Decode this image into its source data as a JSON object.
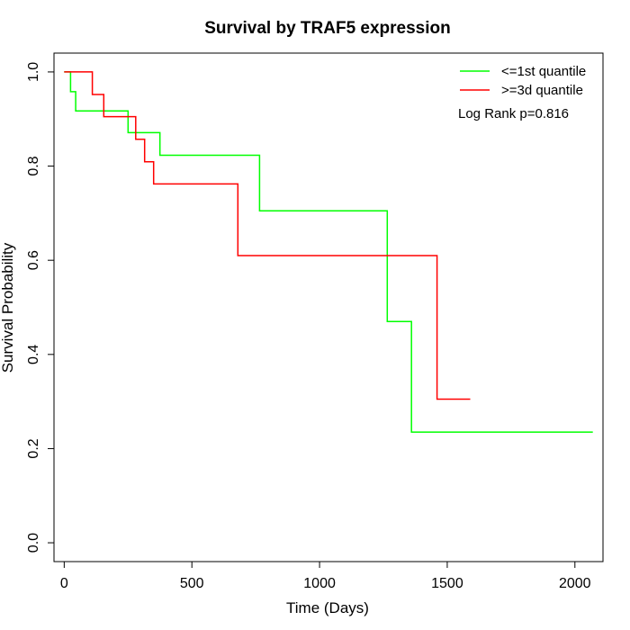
{
  "chart_data": {
    "type": "line",
    "subtype": "step",
    "title": "Survival by TRAF5 expression",
    "xlabel": "Time (Days)",
    "ylabel": "Survival Probability",
    "xlim": [
      -40,
      2110
    ],
    "ylim": [
      -0.04,
      1.04
    ],
    "x_ticks": [
      0,
      500,
      1000,
      1500,
      2000
    ],
    "y_ticks": [
      0.0,
      0.2,
      0.4,
      0.6,
      0.8,
      1.0
    ],
    "x_tick_labels": [
      "0",
      "500",
      "1000",
      "1500",
      "2000"
    ],
    "y_tick_labels": [
      "0.0",
      "0.2",
      "0.4",
      "0.6",
      "0.8",
      "1.0"
    ],
    "grid": false,
    "legend_position": "top-right",
    "annotation": "Log Rank p=0.816",
    "series": [
      {
        "name": "<=1st quantile",
        "color": "#00ff00",
        "x": [
          0,
          25,
          45,
          250,
          375,
          765,
          1265,
          1360,
          2070
        ],
        "y": [
          1.0,
          0.958,
          0.917,
          0.871,
          0.823,
          0.705,
          0.47,
          0.235,
          0.235
        ]
      },
      {
        "name": ">=3d quantile",
        "color": "#ff0000",
        "x": [
          0,
          110,
          155,
          280,
          315,
          350,
          680,
          1460,
          1590
        ],
        "y": [
          1.0,
          0.952,
          0.905,
          0.857,
          0.809,
          0.762,
          0.61,
          0.305,
          0.305
        ]
      }
    ]
  }
}
